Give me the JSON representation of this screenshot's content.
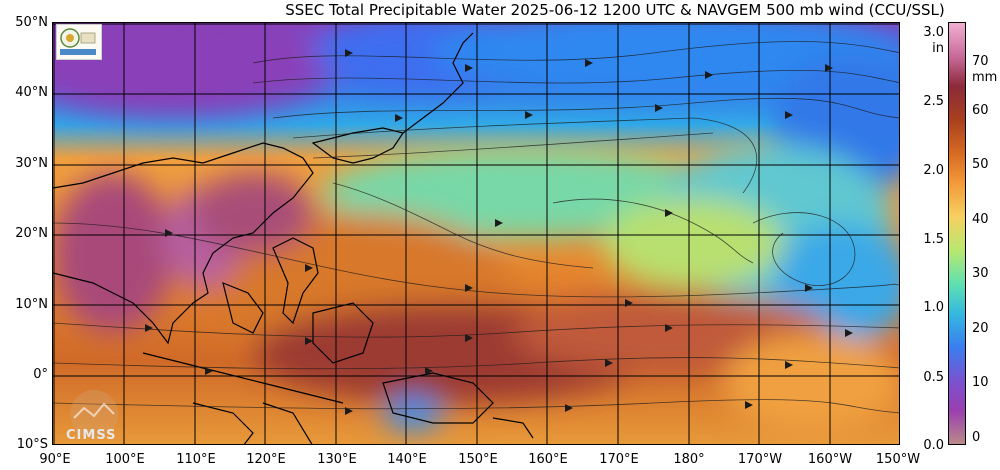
{
  "title": "SSEC Total Precipitable Water  2025-06-12 1200 UTC & NAVGEM 500 mb wind (CCU/SSL)",
  "lat_labels": [
    "50°N",
    "40°N",
    "30°N",
    "20°N",
    "10°N",
    "0°",
    "10°S"
  ],
  "lon_labels": [
    "90°E",
    "100°E",
    "110°E",
    "120°E",
    "130°E",
    "140°E",
    "150°E",
    "160°E",
    "170°E",
    "180°",
    "170°W",
    "160°W",
    "150°W"
  ],
  "colorbar": {
    "inch_unit": "in",
    "mm_unit": "mm",
    "inch_ticks": [
      "3.0",
      "2.5",
      "2.0",
      "1.5",
      "1.0",
      "0.5",
      "0.0"
    ],
    "mm_ticks": [
      "70",
      "60",
      "50",
      "40",
      "30",
      "20",
      "10",
      "0"
    ],
    "colors": [
      "#b98a8a",
      "#9a3fb0",
      "#7a52d0",
      "#3a7ef0",
      "#34b9e0",
      "#5fe0b0",
      "#b8e870",
      "#f6d060",
      "#f29a38",
      "#d86a22",
      "#a8401e",
      "#8c2a3a",
      "#c86a9a",
      "#f0b0d0"
    ]
  },
  "logos": {
    "cimss": "CIMSS"
  }
}
